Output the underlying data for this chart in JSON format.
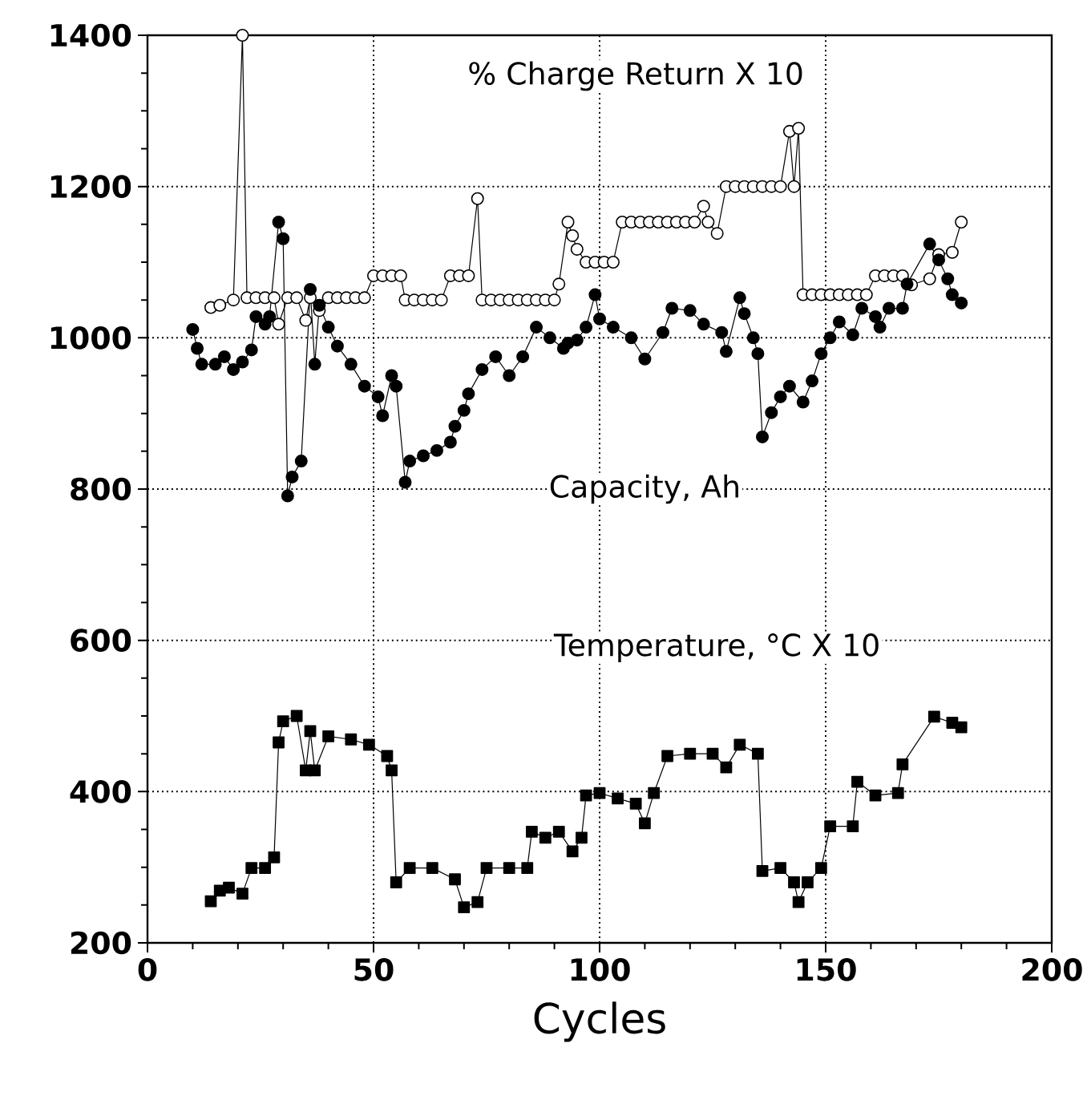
{
  "chart_data": {
    "type": "line",
    "xlabel": "Cycles",
    "xlim": [
      0,
      200
    ],
    "xticks": [
      0,
      50,
      100,
      150,
      200
    ],
    "ylim": [
      200,
      1400
    ],
    "yticks": [
      200,
      400,
      600,
      800,
      1000,
      1200,
      1400
    ],
    "grid": true,
    "legend": false,
    "series": [
      {
        "name": "% Charge Return X 10",
        "color": "#000000",
        "marker": "circle",
        "x": [
          14,
          16,
          19,
          21,
          22,
          24,
          26,
          28,
          29,
          31,
          33,
          35,
          36,
          38,
          40,
          42,
          44,
          46,
          48,
          50,
          52,
          54,
          56,
          57,
          59,
          61,
          63,
          65,
          67,
          69,
          71,
          73,
          74,
          76,
          78,
          80,
          82,
          84,
          86,
          88,
          90,
          91,
          93,
          94,
          95,
          97,
          99,
          101,
          103,
          105,
          107,
          109,
          111,
          113,
          115,
          117,
          119,
          121,
          123,
          124,
          126,
          128,
          130,
          132,
          134,
          136,
          138,
          140,
          142,
          143,
          144,
          145,
          147,
          149,
          151,
          153,
          155,
          157,
          159,
          161,
          163,
          165,
          167,
          169,
          173,
          175,
          178,
          180
        ],
        "values": [
          1040,
          1043,
          1050,
          1400,
          1053,
          1053,
          1053,
          1053,
          1018,
          1053,
          1053,
          1023,
          1053,
          1036,
          1053,
          1053,
          1053,
          1053,
          1053,
          1082,
          1082,
          1082,
          1082,
          1050,
          1050,
          1050,
          1050,
          1050,
          1082,
          1082,
          1082,
          1184,
          1050,
          1050,
          1050,
          1050,
          1050,
          1050,
          1050,
          1050,
          1050,
          1071,
          1153,
          1135,
          1117,
          1100,
          1100,
          1100,
          1100,
          1153,
          1153,
          1153,
          1153,
          1153,
          1153,
          1153,
          1153,
          1153,
          1174,
          1153,
          1138,
          1200,
          1200,
          1200,
          1200,
          1200,
          1200,
          1200,
          1273,
          1200,
          1277,
          1057,
          1057,
          1057,
          1057,
          1057,
          1057,
          1057,
          1057,
          1082,
          1082,
          1082,
          1082,
          1070,
          1078,
          1110,
          1113,
          1153
        ]
      },
      {
        "name": "Capacity, Ah",
        "color": "#000000",
        "marker": "circle",
        "x": [
          10,
          11,
          12,
          15,
          17,
          19,
          21,
          23,
          24,
          26,
          27,
          29,
          30,
          31,
          32,
          34,
          36,
          37,
          38,
          40,
          42,
          45,
          48,
          51,
          52,
          54,
          55,
          57,
          58,
          61,
          64,
          67,
          68,
          70,
          71,
          74,
          77,
          80,
          83,
          86,
          89,
          92,
          93,
          95,
          97,
          99,
          100,
          103,
          107,
          110,
          114,
          116,
          120,
          123,
          127,
          128,
          131,
          132,
          134,
          135,
          136,
          138,
          140,
          142,
          145,
          147,
          149,
          151,
          153,
          156,
          158,
          161,
          162,
          164,
          167,
          168,
          173,
          175,
          177,
          178,
          180
        ],
        "values": [
          1011,
          986,
          965,
          965,
          975,
          958,
          968,
          984,
          1028,
          1018,
          1028,
          1153,
          1131,
          791,
          816,
          837,
          1064,
          965,
          1043,
          1014,
          989,
          965,
          936,
          922,
          897,
          950,
          936,
          809,
          837,
          844,
          851,
          862,
          883,
          904,
          926,
          958,
          975,
          950,
          975,
          1014,
          1000,
          986,
          993,
          997,
          1014,
          1057,
          1025,
          1014,
          1000,
          972,
          1007,
          1039,
          1036,
          1018,
          1007,
          982,
          1053,
          1032,
          1000,
          979,
          869,
          901,
          922,
          936,
          915,
          943,
          979,
          1000,
          1021,
          1004,
          1039,
          1028,
          1014,
          1039,
          1039,
          1071,
          1124,
          1103,
          1078,
          1057,
          1046
        ]
      },
      {
        "name": "Temperature, °C X 10",
        "color": "#000000",
        "marker": "square",
        "x": [
          14,
          16,
          18,
          21,
          23,
          26,
          28,
          29,
          30,
          33,
          35,
          36,
          37,
          40,
          45,
          49,
          53,
          54,
          55,
          58,
          63,
          68,
          70,
          73,
          75,
          80,
          84,
          85,
          88,
          91,
          94,
          96,
          97,
          100,
          104,
          108,
          110,
          112,
          115,
          120,
          125,
          128,
          131,
          135,
          136,
          140,
          143,
          144,
          146,
          149,
          151,
          156,
          157,
          161,
          166,
          167,
          174,
          178,
          180
        ],
        "values": [
          255,
          269,
          273,
          265,
          299,
          299,
          313,
          465,
          493,
          500,
          428,
          480,
          428,
          473,
          469,
          462,
          447,
          428,
          280,
          299,
          299,
          284,
          247,
          254,
          299,
          299,
          299,
          347,
          339,
          347,
          321,
          339,
          395,
          398,
          391,
          384,
          358,
          398,
          447,
          450,
          450,
          432,
          462,
          450,
          295,
          299,
          280,
          254,
          280,
          299,
          354,
          354,
          413,
          395,
          398,
          436,
          499,
          491,
          485
        ]
      }
    ]
  }
}
